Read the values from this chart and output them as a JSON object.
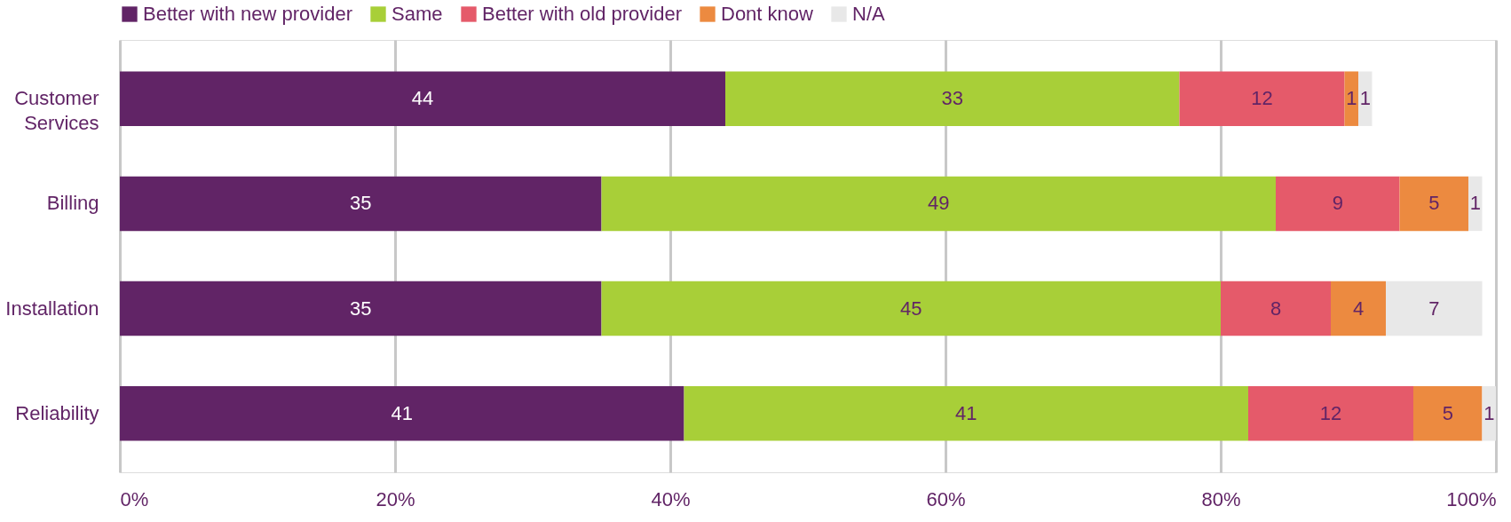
{
  "chart_data": {
    "type": "bar",
    "orientation": "horizontal",
    "stacked": true,
    "data_labels": true,
    "legend": "top",
    "grid": "x",
    "categories": [
      "Customer Services",
      "Billing",
      "Installation",
      "Reliability"
    ],
    "series": [
      {
        "name": "Better with new provider",
        "color": "#612466",
        "values": [
          44,
          35,
          35,
          41
        ]
      },
      {
        "name": "Same",
        "color": "#a8cf38",
        "values": [
          33,
          49,
          45,
          41
        ]
      },
      {
        "name": "Better with old provider",
        "color": "#e55a6a",
        "values": [
          12,
          9,
          8,
          12
        ]
      },
      {
        "name": "Dont know",
        "color": "#ec8a40",
        "values": [
          1,
          5,
          4,
          5
        ]
      },
      {
        "name": "N/A",
        "color": "#e8e8e8",
        "values": [
          1,
          1,
          7,
          1
        ]
      }
    ],
    "xlim": [
      0,
      100
    ],
    "xticks": [
      {
        "value": 0,
        "label": "0%"
      },
      {
        "value": 20,
        "label": "20%"
      },
      {
        "value": 40,
        "label": "40%"
      },
      {
        "value": 60,
        "label": "60%"
      },
      {
        "value": 80,
        "label": "80%"
      },
      {
        "value": 100,
        "label": "100%"
      }
    ]
  }
}
